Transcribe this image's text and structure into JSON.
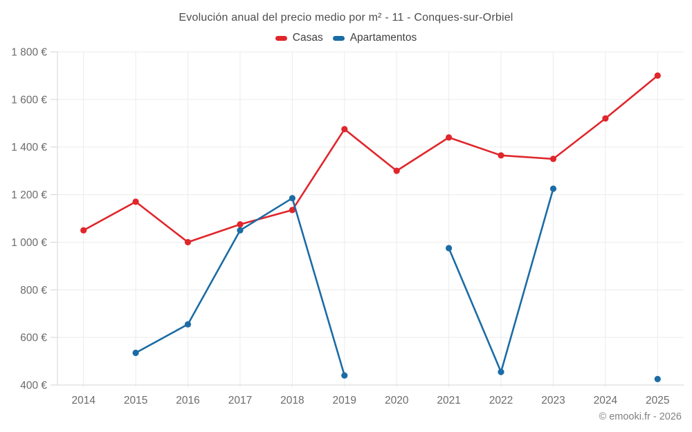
{
  "title": "Evolución anual del precio medio por m² - 11 - Conques-sur-Orbiel",
  "footer": "© emooki.fr - 2026",
  "legend": {
    "items": [
      {
        "label": "Casas",
        "color": "#e0262b"
      },
      {
        "label": "Apartamentos",
        "color": "#1b6ca5"
      }
    ]
  },
  "colors": {
    "casas": "#e0262b",
    "apartamentos": "#1b6ca5",
    "gridline": "#ebebeb",
    "axis_line": "#d4d4d4",
    "axis_text": "#6b6b6b",
    "title_text": "#4d4d4d",
    "footer_text": "#818181",
    "background": "#ffffff"
  },
  "chart_data": {
    "type": "line",
    "title": "Evolución anual del precio medio por m² - 11 - Conques-sur-Orbiel",
    "categories": [
      "2014",
      "2015",
      "2016",
      "2017",
      "2018",
      "2019",
      "2020",
      "2021",
      "2022",
      "2023",
      "2024",
      "2025"
    ],
    "series": [
      {
        "name": "Casas",
        "color": "#e0262b",
        "values": [
          1050,
          1170,
          1000,
          1075,
          1135,
          1475,
          1300,
          1440,
          1365,
          1350,
          1520,
          1700
        ]
      },
      {
        "name": "Apartamentos",
        "color": "#1b6ca5",
        "values": [
          null,
          535,
          655,
          1050,
          1185,
          440,
          null,
          975,
          455,
          1225,
          null,
          425
        ]
      }
    ],
    "xlabel": "",
    "ylabel": "",
    "currency_suffix": "€",
    "yticks": [
      400,
      600,
      800,
      1000,
      1200,
      1400,
      1600,
      1800
    ],
    "ytick_labels": [
      "400 €",
      "600 €",
      "800 €",
      "1 000 €",
      "1 200 €",
      "1 400 €",
      "1 600 €",
      "1 800 €"
    ],
    "ylim": [
      400,
      1800
    ],
    "grid": true,
    "legend_position": "top"
  }
}
